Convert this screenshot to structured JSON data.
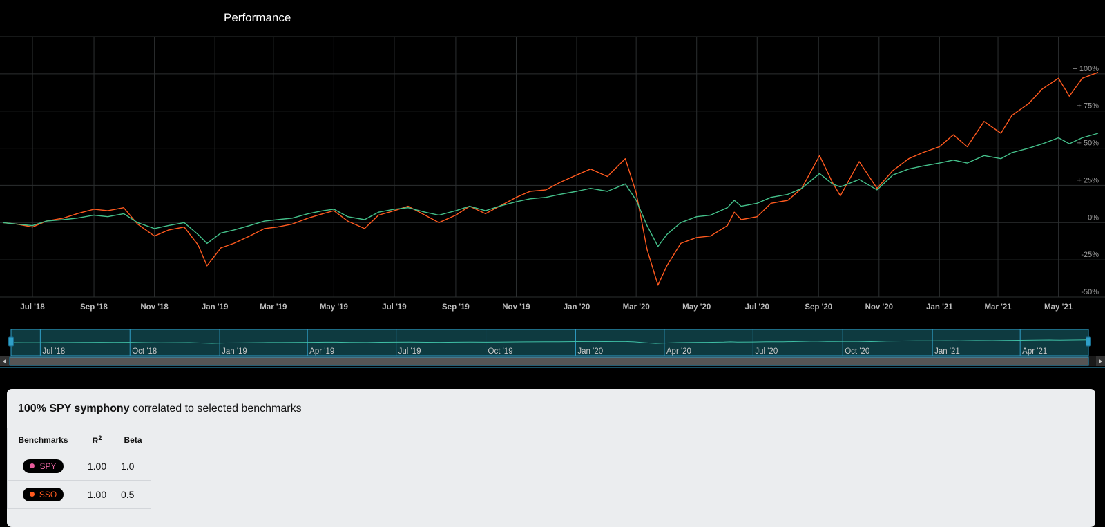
{
  "title": "Performance",
  "colors": {
    "SSO": "#ff5a1f",
    "SPY": "#44c08a",
    "grid": "#2c2f30",
    "navigator": "#0e3a40",
    "navigator_border": "#2f9fc8"
  },
  "chart_data": {
    "type": "line",
    "x_tick_labels": [
      "Jul '18",
      "Sep '18",
      "Nov '18",
      "Jan '19",
      "Mar '19",
      "May '19",
      "Jul '19",
      "Sep '19",
      "Nov '19",
      "Jan '20",
      "Mar '20",
      "May '20",
      "Jul '20",
      "Sep '20",
      "Nov '20",
      "Jan '21",
      "Mar '21",
      "May '21"
    ],
    "x_range": [
      "2018-06-01",
      "2021-06-10"
    ],
    "y_tick_labels": [
      "+ 100%",
      "+ 75%",
      "+ 50%",
      "+ 25%",
      "0%",
      "-25%",
      "-50%"
    ],
    "y_ticks": [
      100,
      75,
      50,
      25,
      0,
      -25,
      -50
    ],
    "ylim": [
      -50,
      125
    ],
    "grid": true,
    "series": [
      {
        "name": "SSO",
        "color_key": "SSO",
        "points": [
          [
            "2018-06-01",
            0
          ],
          [
            "2018-06-15",
            -1
          ],
          [
            "2018-07-01",
            -3
          ],
          [
            "2018-07-15",
            1
          ],
          [
            "2018-08-01",
            3
          ],
          [
            "2018-08-15",
            6
          ],
          [
            "2018-09-01",
            9
          ],
          [
            "2018-09-15",
            8
          ],
          [
            "2018-10-01",
            10
          ],
          [
            "2018-10-15",
            -1
          ],
          [
            "2018-11-01",
            -9
          ],
          [
            "2018-11-15",
            -5
          ],
          [
            "2018-12-01",
            -3
          ],
          [
            "2018-12-15",
            -15
          ],
          [
            "2018-12-24",
            -29
          ],
          [
            "2019-01-07",
            -17
          ],
          [
            "2019-01-20",
            -14
          ],
          [
            "2019-02-05",
            -9
          ],
          [
            "2019-02-20",
            -4
          ],
          [
            "2019-03-05",
            -3
          ],
          [
            "2019-03-20",
            -1
          ],
          [
            "2019-04-05",
            3
          ],
          [
            "2019-04-20",
            6
          ],
          [
            "2019-05-01",
            8
          ],
          [
            "2019-05-15",
            1
          ],
          [
            "2019-06-01",
            -4
          ],
          [
            "2019-06-15",
            5
          ],
          [
            "2019-07-01",
            8
          ],
          [
            "2019-07-15",
            11
          ],
          [
            "2019-08-01",
            5
          ],
          [
            "2019-08-15",
            0
          ],
          [
            "2019-09-01",
            5
          ],
          [
            "2019-09-15",
            11
          ],
          [
            "2019-10-01",
            6
          ],
          [
            "2019-10-15",
            11
          ],
          [
            "2019-11-01",
            17
          ],
          [
            "2019-11-15",
            21
          ],
          [
            "2019-12-01",
            22
          ],
          [
            "2019-12-15",
            27
          ],
          [
            "2020-01-01",
            32
          ],
          [
            "2020-01-15",
            36
          ],
          [
            "2020-02-01",
            31
          ],
          [
            "2020-02-19",
            43
          ],
          [
            "2020-03-01",
            20
          ],
          [
            "2020-03-12",
            -18
          ],
          [
            "2020-03-23",
            -42
          ],
          [
            "2020-04-01",
            -29
          ],
          [
            "2020-04-15",
            -14
          ],
          [
            "2020-05-01",
            -10
          ],
          [
            "2020-05-15",
            -9
          ],
          [
            "2020-06-01",
            -2
          ],
          [
            "2020-06-08",
            7
          ],
          [
            "2020-06-15",
            2
          ],
          [
            "2020-07-01",
            4
          ],
          [
            "2020-07-15",
            13
          ],
          [
            "2020-08-01",
            15
          ],
          [
            "2020-08-15",
            23
          ],
          [
            "2020-09-02",
            45
          ],
          [
            "2020-09-15",
            27
          ],
          [
            "2020-09-23",
            18
          ],
          [
            "2020-10-12",
            41
          ],
          [
            "2020-10-30",
            23
          ],
          [
            "2020-11-15",
            35
          ],
          [
            "2020-12-01",
            43
          ],
          [
            "2020-12-15",
            47
          ],
          [
            "2021-01-01",
            51
          ],
          [
            "2021-01-15",
            59
          ],
          [
            "2021-01-29",
            51
          ],
          [
            "2021-02-15",
            68
          ],
          [
            "2021-03-04",
            60
          ],
          [
            "2021-03-15",
            72
          ],
          [
            "2021-04-01",
            80
          ],
          [
            "2021-04-15",
            90
          ],
          [
            "2021-05-01",
            97
          ],
          [
            "2021-05-12",
            85
          ],
          [
            "2021-05-25",
            97
          ],
          [
            "2021-06-10",
            101
          ]
        ]
      },
      {
        "name": "SPY",
        "color_key": "SPY",
        "points": [
          [
            "2018-06-01",
            0
          ],
          [
            "2018-06-15",
            -1
          ],
          [
            "2018-07-01",
            -2
          ],
          [
            "2018-07-15",
            1
          ],
          [
            "2018-08-01",
            2
          ],
          [
            "2018-08-15",
            3
          ],
          [
            "2018-09-01",
            5
          ],
          [
            "2018-09-15",
            4
          ],
          [
            "2018-10-01",
            6
          ],
          [
            "2018-10-15",
            0
          ],
          [
            "2018-11-01",
            -4
          ],
          [
            "2018-11-15",
            -2
          ],
          [
            "2018-12-01",
            0
          ],
          [
            "2018-12-15",
            -8
          ],
          [
            "2018-12-24",
            -14
          ],
          [
            "2019-01-07",
            -7
          ],
          [
            "2019-01-20",
            -5
          ],
          [
            "2019-02-05",
            -2
          ],
          [
            "2019-02-20",
            1
          ],
          [
            "2019-03-05",
            2
          ],
          [
            "2019-03-20",
            3
          ],
          [
            "2019-04-05",
            6
          ],
          [
            "2019-04-20",
            8
          ],
          [
            "2019-05-01",
            9
          ],
          [
            "2019-05-15",
            4
          ],
          [
            "2019-06-01",
            2
          ],
          [
            "2019-06-15",
            7
          ],
          [
            "2019-07-01",
            9
          ],
          [
            "2019-07-15",
            10
          ],
          [
            "2019-08-01",
            7
          ],
          [
            "2019-08-15",
            5
          ],
          [
            "2019-09-01",
            8
          ],
          [
            "2019-09-15",
            11
          ],
          [
            "2019-10-01",
            8
          ],
          [
            "2019-10-15",
            11
          ],
          [
            "2019-11-01",
            14
          ],
          [
            "2019-11-15",
            16
          ],
          [
            "2019-12-01",
            17
          ],
          [
            "2019-12-15",
            19
          ],
          [
            "2020-01-01",
            21
          ],
          [
            "2020-01-15",
            23
          ],
          [
            "2020-02-01",
            21
          ],
          [
            "2020-02-19",
            26
          ],
          [
            "2020-03-01",
            15
          ],
          [
            "2020-03-12",
            -2
          ],
          [
            "2020-03-23",
            -16
          ],
          [
            "2020-04-01",
            -8
          ],
          [
            "2020-04-15",
            0
          ],
          [
            "2020-05-01",
            4
          ],
          [
            "2020-05-15",
            5
          ],
          [
            "2020-06-01",
            10
          ],
          [
            "2020-06-08",
            15
          ],
          [
            "2020-06-15",
            11
          ],
          [
            "2020-07-01",
            13
          ],
          [
            "2020-07-15",
            17
          ],
          [
            "2020-08-01",
            19
          ],
          [
            "2020-08-15",
            23
          ],
          [
            "2020-09-02",
            33
          ],
          [
            "2020-09-15",
            26
          ],
          [
            "2020-09-23",
            24
          ],
          [
            "2020-10-12",
            29
          ],
          [
            "2020-10-30",
            22
          ],
          [
            "2020-11-15",
            32
          ],
          [
            "2020-12-01",
            36
          ],
          [
            "2020-12-15",
            38
          ],
          [
            "2021-01-01",
            40
          ],
          [
            "2021-01-15",
            42
          ],
          [
            "2021-01-29",
            40
          ],
          [
            "2021-02-15",
            45
          ],
          [
            "2021-03-04",
            43
          ],
          [
            "2021-03-15",
            47
          ],
          [
            "2021-04-01",
            50
          ],
          [
            "2021-04-15",
            53
          ],
          [
            "2021-05-01",
            57
          ],
          [
            "2021-05-12",
            53
          ],
          [
            "2021-05-25",
            57
          ],
          [
            "2021-06-10",
            60
          ]
        ]
      }
    ]
  },
  "navigator": {
    "tick_labels": [
      "Jul '18",
      "Oct '18",
      "Jan '19",
      "Apr '19",
      "Jul '19",
      "Oct '19",
      "Jan '20",
      "Apr '20",
      "Jul '20",
      "Oct '20",
      "Jan '21",
      "Apr '21"
    ],
    "tick_dates": [
      "2018-07-01",
      "2018-10-01",
      "2019-01-01",
      "2019-04-01",
      "2019-07-01",
      "2019-10-01",
      "2020-01-01",
      "2020-04-01",
      "2020-07-01",
      "2020-10-01",
      "2021-01-01",
      "2021-04-01"
    ]
  },
  "correlation": {
    "heading_bold": "100% SPY symphony",
    "heading_rest": " correlated to selected benchmarks",
    "headers": {
      "benchmarks": "Benchmarks",
      "r2_base": "R",
      "r2_sup": "2",
      "beta": "Beta"
    },
    "rows": [
      {
        "ticker": "SPY",
        "dot_color": "#e65c9b",
        "text_color": "#f06aa6",
        "r2": "1.00",
        "beta": "1.0"
      },
      {
        "ticker": "SSO",
        "dot_color": "#ff5a1f",
        "text_color": "#ff5a1f",
        "r2": "1.00",
        "beta": "0.5"
      }
    ]
  }
}
